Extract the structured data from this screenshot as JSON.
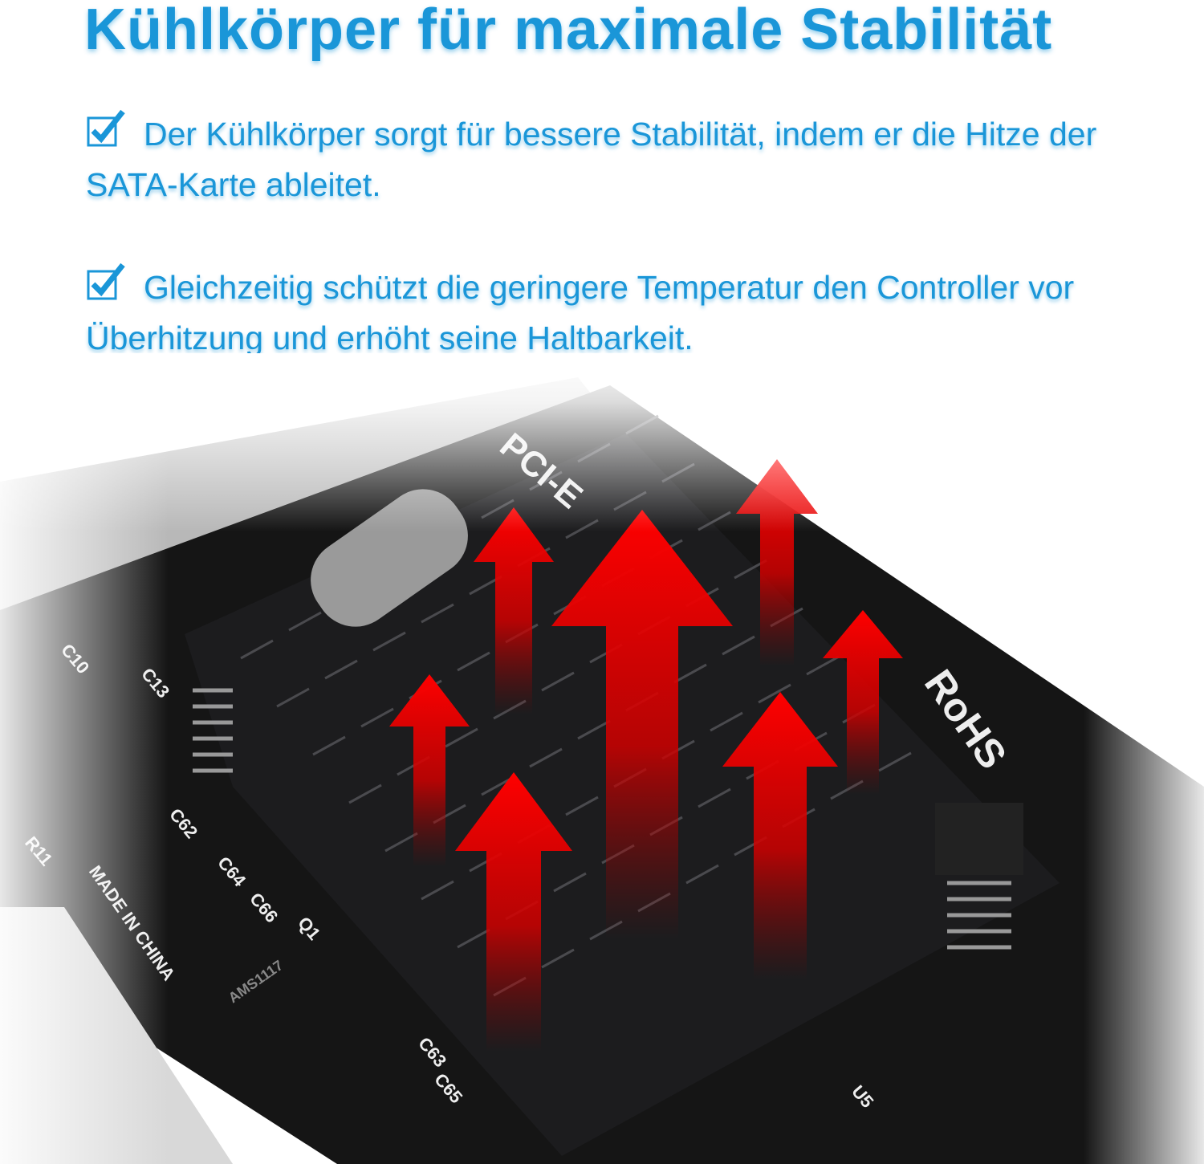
{
  "title": "Kühlkörper für maximale Stabilität",
  "bullets": [
    {
      "icon": "checkbox-checked-icon",
      "text": "Der Kühlkörper sorgt für bessere Stabilität, indem er die Hitze der SATA-Karte ableitet."
    },
    {
      "icon": "checkbox-checked-icon",
      "text": "Gleichzeitig schützt die geringere Temperatur den Controller vor Überhitzung und erhöht seine Haltbarkeit."
    }
  ],
  "board_labels": {
    "pcie": "PCI-E",
    "made_in": "MADE IN CHINA",
    "regulator": "AMS1117",
    "c10": "C10",
    "c13": "C13",
    "c62": "C62",
    "c64": "C64",
    "c66": "C66",
    "q1": "Q1",
    "c63": "C63",
    "c65": "C65",
    "r11": "R11",
    "u5": "U5",
    "rohs": "RoHS"
  },
  "colors": {
    "accent": "#1a96d8",
    "arrow": "#ee0000",
    "heatsink": "#1c1c1e",
    "board": "#151515"
  }
}
